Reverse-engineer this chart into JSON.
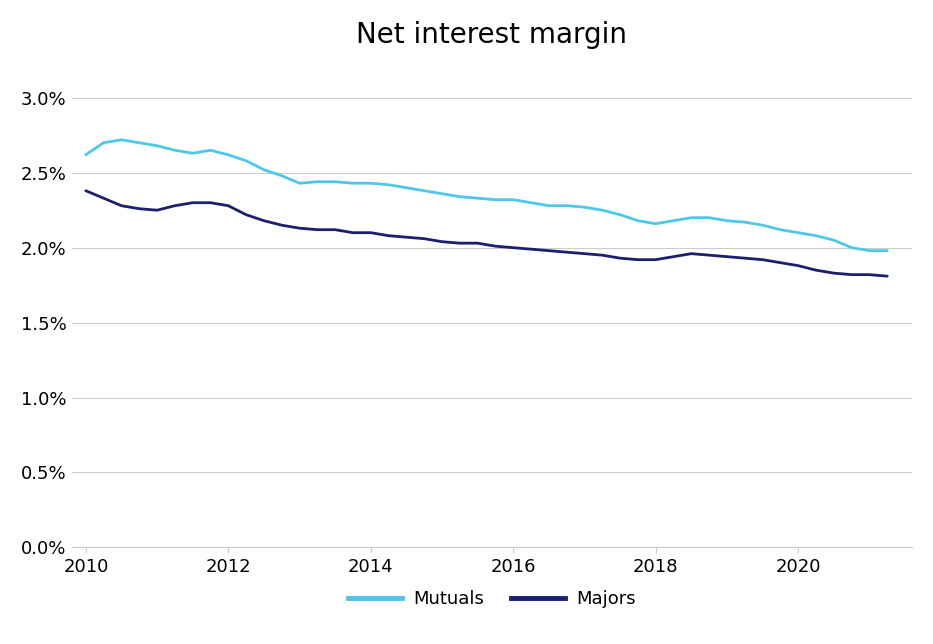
{
  "title": "Net interest margin",
  "title_fontsize": 20,
  "mutuals_color": "#4DC8E8",
  "majors_color": "#1A1F6E",
  "line_width": 2.0,
  "background_color": "#FFFFFF",
  "grid_color": "#CCCCCC",
  "ylim": [
    0.0,
    0.032
  ],
  "yticks": [
    0.0,
    0.005,
    0.01,
    0.015,
    0.02,
    0.025,
    0.03
  ],
  "ytick_labels": [
    "0.0%",
    "0.5%",
    "1.0%",
    "1.5%",
    "2.0%",
    "2.5%",
    "3.0%"
  ],
  "xticks": [
    2010,
    2012,
    2014,
    2016,
    2018,
    2020
  ],
  "xtick_labels": [
    "2010",
    "2012",
    "2014",
    "2016",
    "2018",
    "2020"
  ],
  "xlim": [
    2009.8,
    2021.6
  ],
  "legend_labels": [
    "Mutuals",
    "Majors"
  ],
  "mutuals_x": [
    2010.0,
    2010.25,
    2010.5,
    2010.75,
    2011.0,
    2011.25,
    2011.5,
    2011.75,
    2012.0,
    2012.25,
    2012.5,
    2012.75,
    2013.0,
    2013.25,
    2013.5,
    2013.75,
    2014.0,
    2014.25,
    2014.5,
    2014.75,
    2015.0,
    2015.25,
    2015.5,
    2015.75,
    2016.0,
    2016.25,
    2016.5,
    2016.75,
    2017.0,
    2017.25,
    2017.5,
    2017.75,
    2018.0,
    2018.25,
    2018.5,
    2018.75,
    2019.0,
    2019.25,
    2019.5,
    2019.75,
    2020.0,
    2020.25,
    2020.5,
    2020.75,
    2021.0,
    2021.25
  ],
  "mutuals_y": [
    0.0262,
    0.027,
    0.0272,
    0.027,
    0.0268,
    0.0265,
    0.0263,
    0.0265,
    0.0262,
    0.0258,
    0.0252,
    0.0248,
    0.0243,
    0.0244,
    0.0244,
    0.0243,
    0.0243,
    0.0242,
    0.024,
    0.0238,
    0.0236,
    0.0234,
    0.0233,
    0.0232,
    0.0232,
    0.023,
    0.0228,
    0.0228,
    0.0227,
    0.0225,
    0.0222,
    0.0218,
    0.0216,
    0.0218,
    0.022,
    0.022,
    0.0218,
    0.0217,
    0.0215,
    0.0212,
    0.021,
    0.0208,
    0.0205,
    0.02,
    0.0198,
    0.0198
  ],
  "majors_x": [
    2010.0,
    2010.25,
    2010.5,
    2010.75,
    2011.0,
    2011.25,
    2011.5,
    2011.75,
    2012.0,
    2012.25,
    2012.5,
    2012.75,
    2013.0,
    2013.25,
    2013.5,
    2013.75,
    2014.0,
    2014.25,
    2014.5,
    2014.75,
    2015.0,
    2015.25,
    2015.5,
    2015.75,
    2016.0,
    2016.25,
    2016.5,
    2016.75,
    2017.0,
    2017.25,
    2017.5,
    2017.75,
    2018.0,
    2018.25,
    2018.5,
    2018.75,
    2019.0,
    2019.25,
    2019.5,
    2019.75,
    2020.0,
    2020.25,
    2020.5,
    2020.75,
    2021.0,
    2021.25
  ],
  "majors_y": [
    0.0238,
    0.0233,
    0.0228,
    0.0226,
    0.0225,
    0.0228,
    0.023,
    0.023,
    0.0228,
    0.0222,
    0.0218,
    0.0215,
    0.0213,
    0.0212,
    0.0212,
    0.021,
    0.021,
    0.0208,
    0.0207,
    0.0206,
    0.0204,
    0.0203,
    0.0203,
    0.0201,
    0.02,
    0.0199,
    0.0198,
    0.0197,
    0.0196,
    0.0195,
    0.0193,
    0.0192,
    0.0192,
    0.0194,
    0.0196,
    0.0195,
    0.0194,
    0.0193,
    0.0192,
    0.019,
    0.0188,
    0.0185,
    0.0183,
    0.0182,
    0.0182,
    0.0181
  ]
}
